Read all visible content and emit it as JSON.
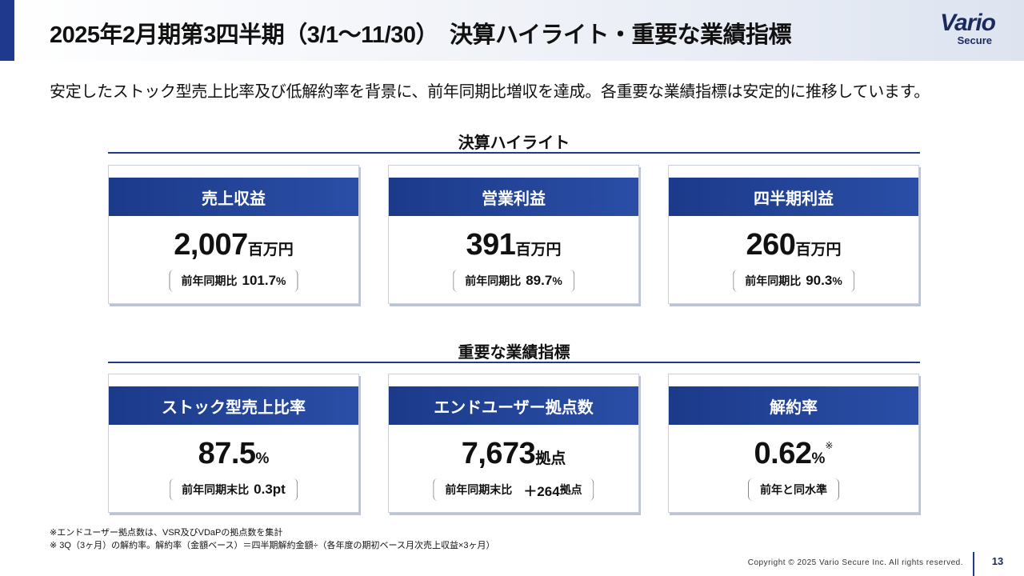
{
  "header": {
    "title": "2025年2月期第3四半期（3/1～11/30）　決算ハイライト・重要な業績指標",
    "logo_main": "Vario",
    "logo_sub": "Secure"
  },
  "lead": "安定したストック型売上比率及び低解約率を背景に、前年同期比増収を達成。各重要な業績指標は安定的に推移しています。",
  "highlights": {
    "title": "決算ハイライト",
    "cards": [
      {
        "label": "売上収益",
        "value": "2,007",
        "unit": "百万円",
        "compare_label": "前年同期比",
        "compare_value": "101.7",
        "compare_unit": "%"
      },
      {
        "label": "営業利益",
        "value": "391",
        "unit": "百万円",
        "compare_label": "前年同期比",
        "compare_value": "89.7",
        "compare_unit": "%"
      },
      {
        "label": "四半期利益",
        "value": "260",
        "unit": "百万円",
        "compare_label": "前年同期比",
        "compare_value": "90.3",
        "compare_unit": "%"
      }
    ]
  },
  "kpis": {
    "title": "重要な業績指標",
    "cards": [
      {
        "label": "ストック型売上比率",
        "value": "87.5",
        "unit": "%",
        "compare_label": "前年同期末比",
        "compare_value": "0.3pt",
        "compare_unit": ""
      },
      {
        "label": "エンドユーザー拠点数",
        "value": "7,673",
        "unit": "拠点",
        "compare_label": "前年同期末比",
        "compare_value": "＋264",
        "compare_unit": "拠点"
      },
      {
        "label": "解約率",
        "value": "0.62",
        "unit": "%",
        "note_mark": "※",
        "compare_label": "前年と同水準",
        "compare_value": "",
        "compare_unit": ""
      }
    ]
  },
  "footnotes": [
    "※エンドユーザー拠点数は、VSR及びVDaPの拠点数を集計",
    "※ 3Q（3ヶ月）の解約率。解約率（金額ベース）＝四半期解約金額÷（各年度の期初ベース月次売上収益×3ヶ月）"
  ],
  "copyright": "Copyright © 2025 Vario Secure Inc. All rights reserved.",
  "page_number": "13"
}
